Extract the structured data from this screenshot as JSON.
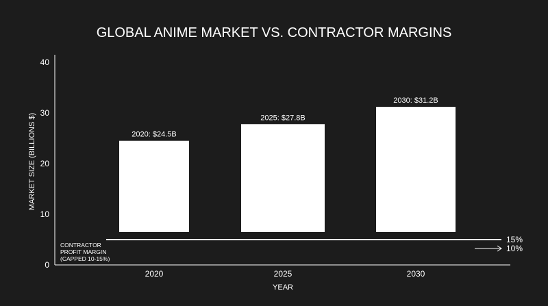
{
  "chart_data": {
    "type": "bar",
    "title": "GLOBAL ANIME MARKET VS. CONTRACTOR MARGINS",
    "xlabel": "YEAR",
    "ylabel": "MARKET SIZE (BILLIONS $)",
    "ylim": [
      0,
      40
    ],
    "yticks": [
      0,
      10,
      20,
      30,
      40
    ],
    "categories": [
      "2020",
      "2025",
      "2030"
    ],
    "values": [
      24.5,
      27.8,
      31.2
    ],
    "data_labels": [
      "2020: $24.5B",
      "2025: $27.8B",
      "2030: $31.2B"
    ],
    "bar_color": "#ffffff",
    "background": "#1c1c1c",
    "grid": false,
    "margin_annotation": {
      "lines": [
        "CONTRACTOR",
        "PROFIT MARGIN",
        "(CAPPED 10-15%)"
      ],
      "upper_label": "15%",
      "lower_label": "10%"
    }
  }
}
